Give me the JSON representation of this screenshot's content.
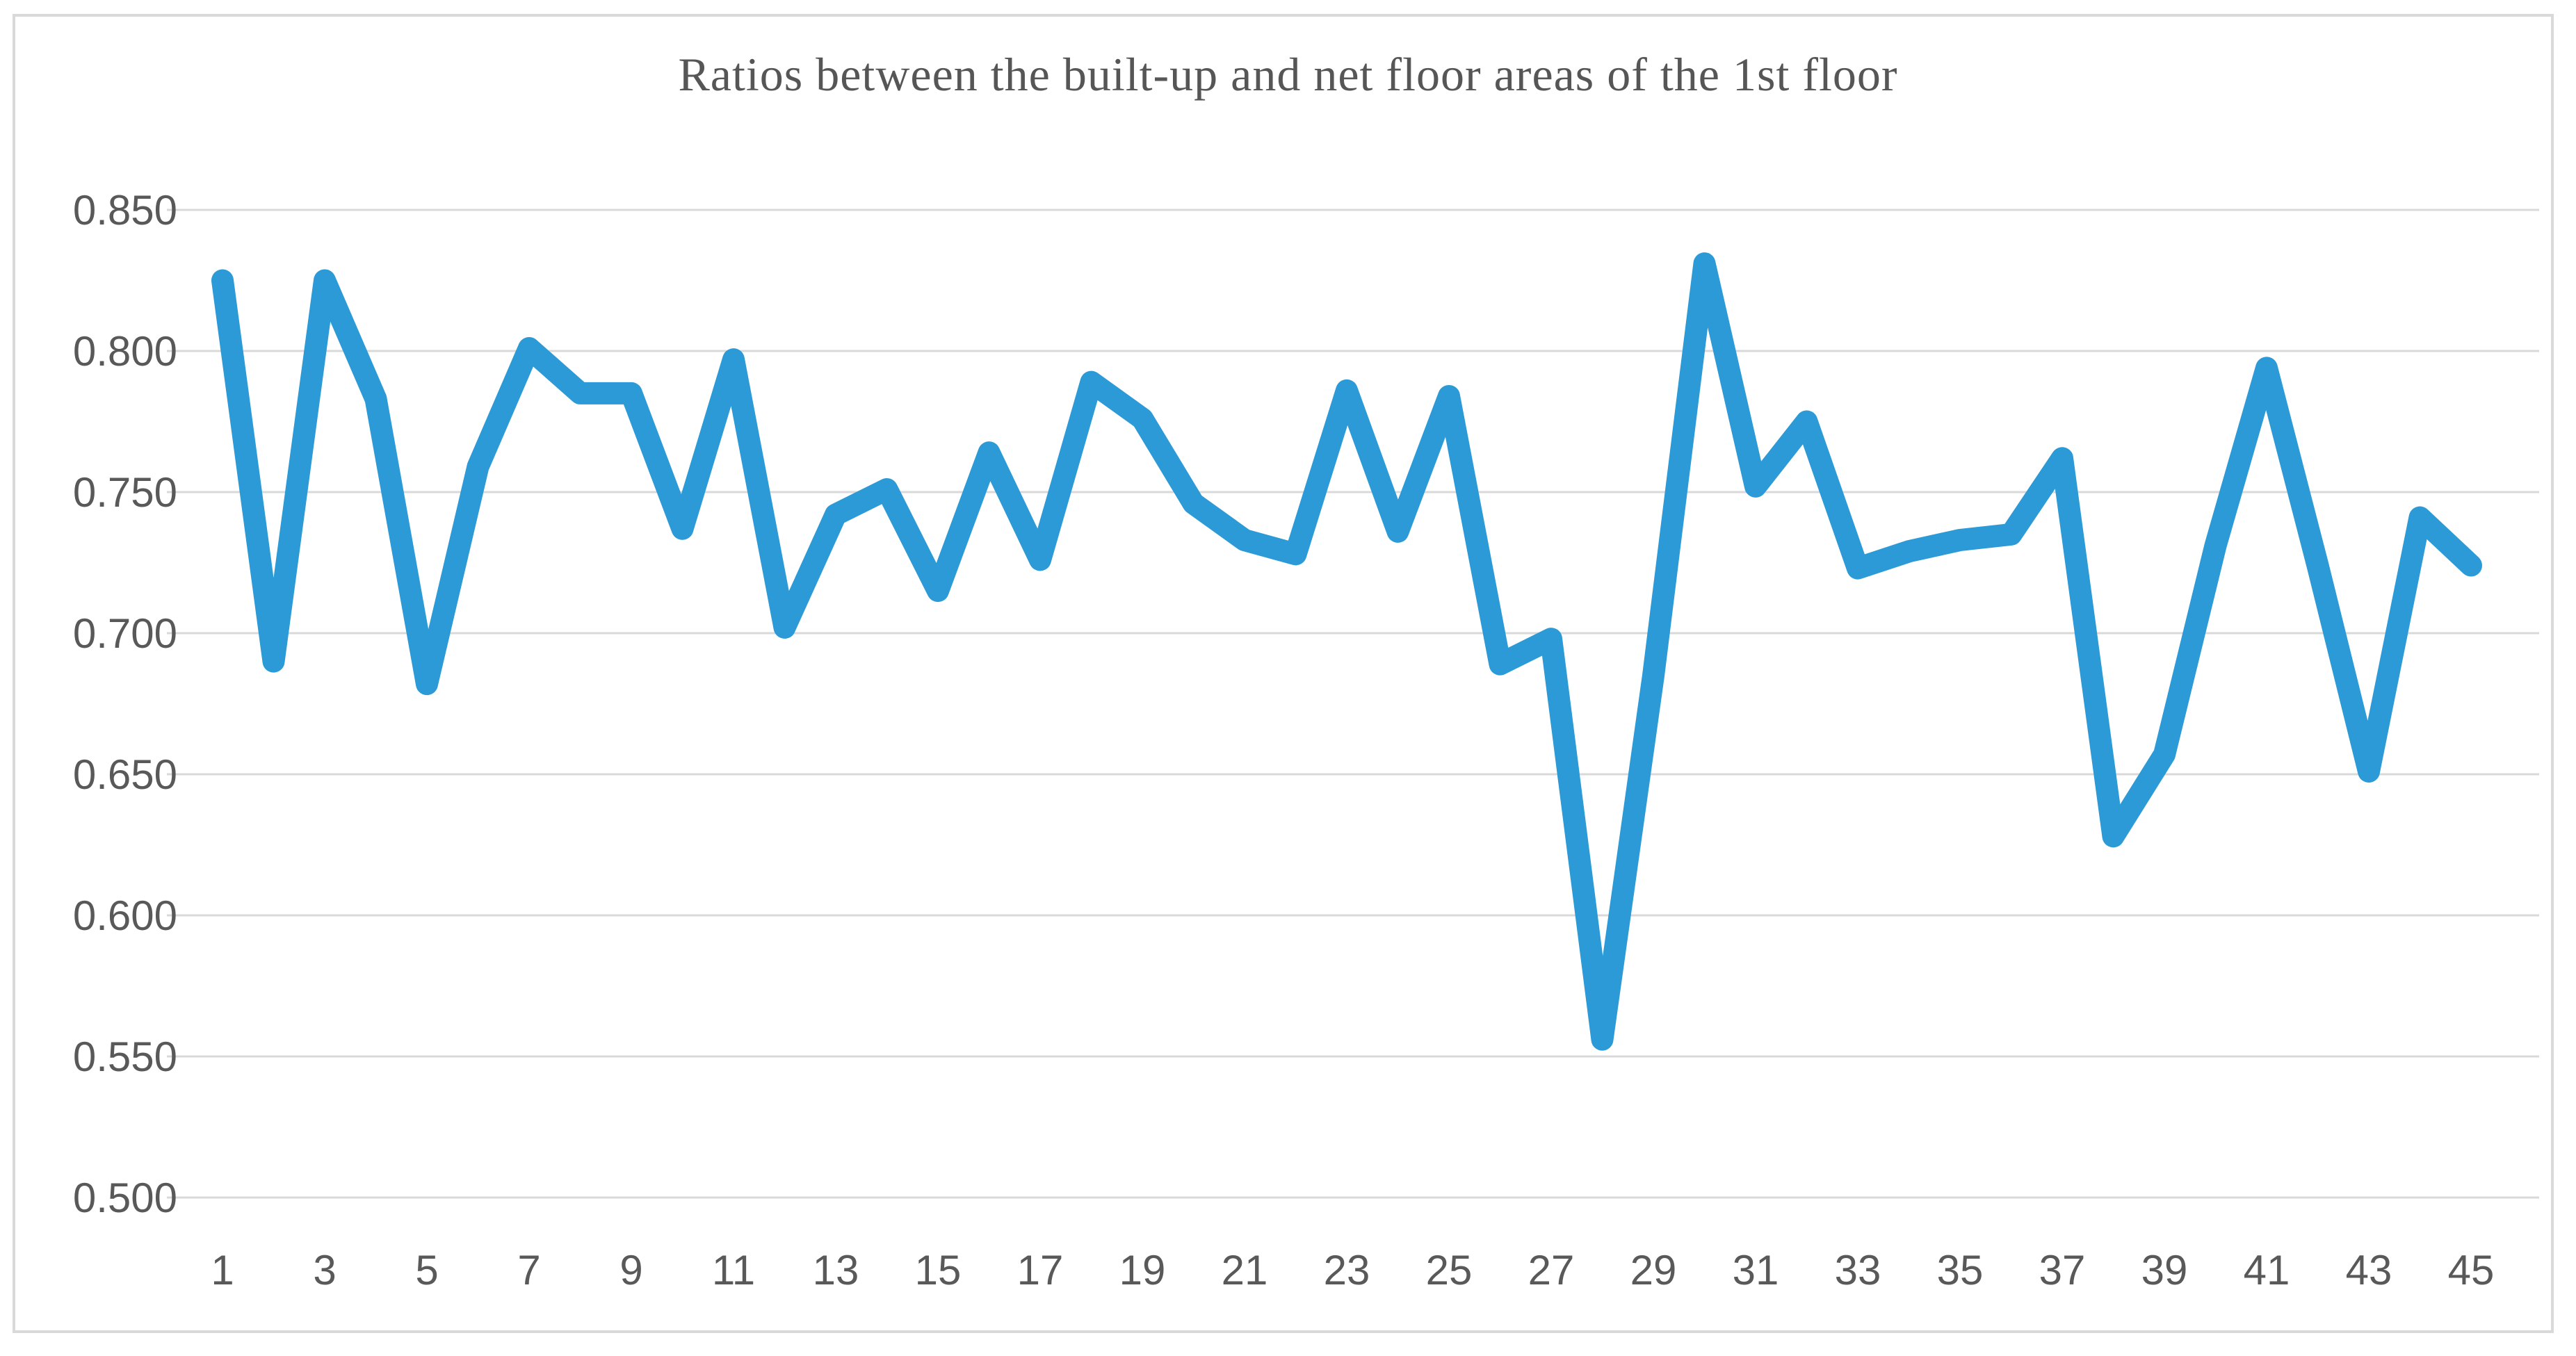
{
  "title": "Ratios between the built-up and net floor areas of the 1st floor",
  "chart_data": {
    "type": "line",
    "title": "Ratios between the built-up and net floor areas of the 1st floor",
    "xlabel": "",
    "ylabel": "",
    "legend_position": "none",
    "grid": "horizontal",
    "x": [
      1,
      2,
      3,
      4,
      5,
      6,
      7,
      8,
      9,
      10,
      11,
      12,
      13,
      14,
      15,
      16,
      17,
      18,
      19,
      20,
      21,
      22,
      23,
      24,
      25,
      26,
      27,
      28,
      29,
      30,
      31,
      32,
      33,
      34,
      35,
      36,
      37,
      38,
      39,
      40,
      41,
      42,
      43,
      44,
      45
    ],
    "values": [
      0.825,
      0.69,
      0.825,
      0.783,
      0.682,
      0.759,
      0.801,
      0.785,
      0.785,
      0.737,
      0.797,
      0.702,
      0.742,
      0.751,
      0.715,
      0.764,
      0.726,
      0.789,
      0.776,
      0.746,
      0.733,
      0.728,
      0.786,
      0.736,
      0.784,
      0.689,
      0.698,
      0.556,
      0.685,
      0.831,
      0.752,
      0.775,
      0.723,
      0.729,
      0.733,
      0.735,
      0.762,
      0.628,
      0.657,
      0.731,
      0.794,
      0.724,
      0.651,
      0.741,
      0.724
    ],
    "x_tick_labels": [
      "1",
      "3",
      "5",
      "7",
      "9",
      "11",
      "13",
      "15",
      "17",
      "19",
      "21",
      "23",
      "25",
      "27",
      "29",
      "31",
      "33",
      "35",
      "37",
      "39",
      "41",
      "43",
      "45"
    ],
    "x_tick_values": [
      1,
      3,
      5,
      7,
      9,
      11,
      13,
      15,
      17,
      19,
      21,
      23,
      25,
      27,
      29,
      31,
      33,
      35,
      37,
      39,
      41,
      43,
      45
    ],
    "y_tick_labels": [
      "0.850",
      "0.800",
      "0.750",
      "0.700",
      "0.650",
      "0.600",
      "0.550",
      "0.500"
    ],
    "y_tick_values": [
      0.85,
      0.8,
      0.75,
      0.7,
      0.65,
      0.6,
      0.55,
      0.5
    ],
    "ylim": [
      0.5,
      0.85
    ],
    "series_color": "#2B9AD6",
    "gridline_color": "#D9D9D9",
    "frame_color": "#D9D9D9",
    "label_color": "#595959",
    "title_color": "#565656"
  }
}
